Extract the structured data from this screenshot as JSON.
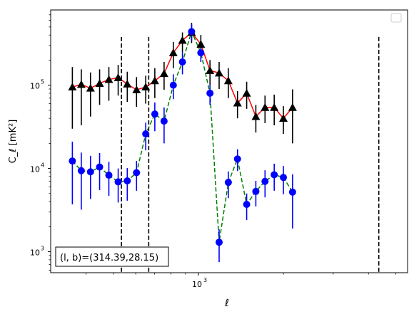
{
  "chart_data": {
    "type": "line",
    "xlabel": "ℓ",
    "ylabel": "C_ℓ  [mK²]",
    "xscale": "log",
    "yscale": "log",
    "xlim": [
      300,
      5500
    ],
    "ylim": [
      560,
      800000
    ],
    "x_ticks": [
      {
        "value": 1000,
        "label": "10",
        "exp": "3"
      }
    ],
    "y_ticks": [
      {
        "value": 1000,
        "label": "10",
        "exp": "3"
      },
      {
        "value": 10000,
        "label": "10",
        "exp": "4"
      },
      {
        "value": 100000,
        "label": "10",
        "exp": "5"
      }
    ],
    "annotation": "(l, b)=(314.39,28.15)",
    "vlines": [
      534,
      667,
      4350
    ],
    "legend": "top-right (empty)",
    "series": [
      {
        "marker": "triangle",
        "color": "#000000",
        "line_color": "#ff0000",
        "line_style": "solid",
        "points": [
          {
            "x": 358,
            "y": 95000,
            "lo": 30000,
            "hi": 165000
          },
          {
            "x": 385,
            "y": 102000,
            "lo": 33000,
            "hi": 155000
          },
          {
            "x": 415,
            "y": 92000,
            "lo": 42000,
            "hi": 142000
          },
          {
            "x": 447,
            "y": 105000,
            "lo": 58000,
            "hi": 155000
          },
          {
            "x": 482,
            "y": 117000,
            "lo": 65000,
            "hi": 165000
          },
          {
            "x": 520,
            "y": 123000,
            "lo": 75000,
            "hi": 175000
          },
          {
            "x": 560,
            "y": 103000,
            "lo": 63000,
            "hi": 145000
          },
          {
            "x": 604,
            "y": 88000,
            "lo": 55000,
            "hi": 125000
          },
          {
            "x": 651,
            "y": 95000,
            "lo": 60000,
            "hi": 130000
          },
          {
            "x": 701,
            "y": 113000,
            "lo": 70000,
            "hi": 160000
          },
          {
            "x": 756,
            "y": 138000,
            "lo": 88000,
            "hi": 190000
          },
          {
            "x": 815,
            "y": 245000,
            "lo": 160000,
            "hi": 330000
          },
          {
            "x": 878,
            "y": 345000,
            "lo": 250000,
            "hi": 430000
          },
          {
            "x": 946,
            "y": 430000,
            "lo": 320000,
            "hi": 560000
          },
          {
            "x": 1020,
            "y": 310000,
            "lo": 230000,
            "hi": 400000
          },
          {
            "x": 1099,
            "y": 150000,
            "lo": 100000,
            "hi": 200000
          },
          {
            "x": 1184,
            "y": 140000,
            "lo": 90000,
            "hi": 190000
          },
          {
            "x": 1276,
            "y": 113000,
            "lo": 70000,
            "hi": 160000
          },
          {
            "x": 1375,
            "y": 61000,
            "lo": 40000,
            "hi": 85000
          },
          {
            "x": 1482,
            "y": 80000,
            "lo": 52000,
            "hi": 110000
          },
          {
            "x": 1597,
            "y": 42000,
            "lo": 27000,
            "hi": 58000
          },
          {
            "x": 1721,
            "y": 54000,
            "lo": 35000,
            "hi": 75000
          },
          {
            "x": 1855,
            "y": 54000,
            "lo": 33000,
            "hi": 77000
          },
          {
            "x": 1999,
            "y": 40000,
            "lo": 26000,
            "hi": 56000
          },
          {
            "x": 2154,
            "y": 54000,
            "lo": 20000,
            "hi": 89000
          }
        ]
      },
      {
        "marker": "circle",
        "color": "#0000ff",
        "line_color": "#008000",
        "line_style": "dashed",
        "points": [
          {
            "x": 358,
            "y": 12300,
            "lo": 3700,
            "hi": 21000
          },
          {
            "x": 385,
            "y": 9400,
            "lo": 3200,
            "hi": 15500
          },
          {
            "x": 415,
            "y": 9100,
            "lo": 4300,
            "hi": 14200
          },
          {
            "x": 447,
            "y": 10400,
            "lo": 5500,
            "hi": 15300
          },
          {
            "x": 482,
            "y": 8300,
            "lo": 4700,
            "hi": 12000
          },
          {
            "x": 520,
            "y": 6900,
            "lo": 3900,
            "hi": 10000
          },
          {
            "x": 560,
            "y": 7100,
            "lo": 4100,
            "hi": 10100
          },
          {
            "x": 604,
            "y": 8900,
            "lo": 5400,
            "hi": 12300
          },
          {
            "x": 651,
            "y": 26000,
            "lo": 16500,
            "hi": 35500
          },
          {
            "x": 701,
            "y": 45000,
            "lo": 28000,
            "hi": 62000
          },
          {
            "x": 756,
            "y": 37000,
            "lo": 20000,
            "hi": 54000
          },
          {
            "x": 815,
            "y": 100000,
            "lo": 68000,
            "hi": 135000
          },
          {
            "x": 878,
            "y": 190000,
            "lo": 135000,
            "hi": 250000
          },
          {
            "x": 946,
            "y": 440000,
            "lo": 340000,
            "hi": 540000
          },
          {
            "x": 1020,
            "y": 245000,
            "lo": 190000,
            "hi": 300000
          },
          {
            "x": 1099,
            "y": 80000,
            "lo": 58000,
            "hi": 102000
          },
          {
            "x": 1184,
            "y": 1300,
            "lo": 750,
            "hi": 1850
          },
          {
            "x": 1276,
            "y": 6800,
            "lo": 4400,
            "hi": 9200
          },
          {
            "x": 1375,
            "y": 13000,
            "lo": 9300,
            "hi": 17000
          },
          {
            "x": 1482,
            "y": 3700,
            "lo": 2400,
            "hi": 5000
          },
          {
            "x": 1597,
            "y": 5300,
            "lo": 3500,
            "hi": 7100
          },
          {
            "x": 1721,
            "y": 7000,
            "lo": 4500,
            "hi": 9500
          },
          {
            "x": 1855,
            "y": 8400,
            "lo": 5400,
            "hi": 11400
          },
          {
            "x": 1999,
            "y": 7800,
            "lo": 4900,
            "hi": 10700
          },
          {
            "x": 2154,
            "y": 5200,
            "lo": 1900,
            "hi": 8500
          }
        ]
      }
    ]
  }
}
